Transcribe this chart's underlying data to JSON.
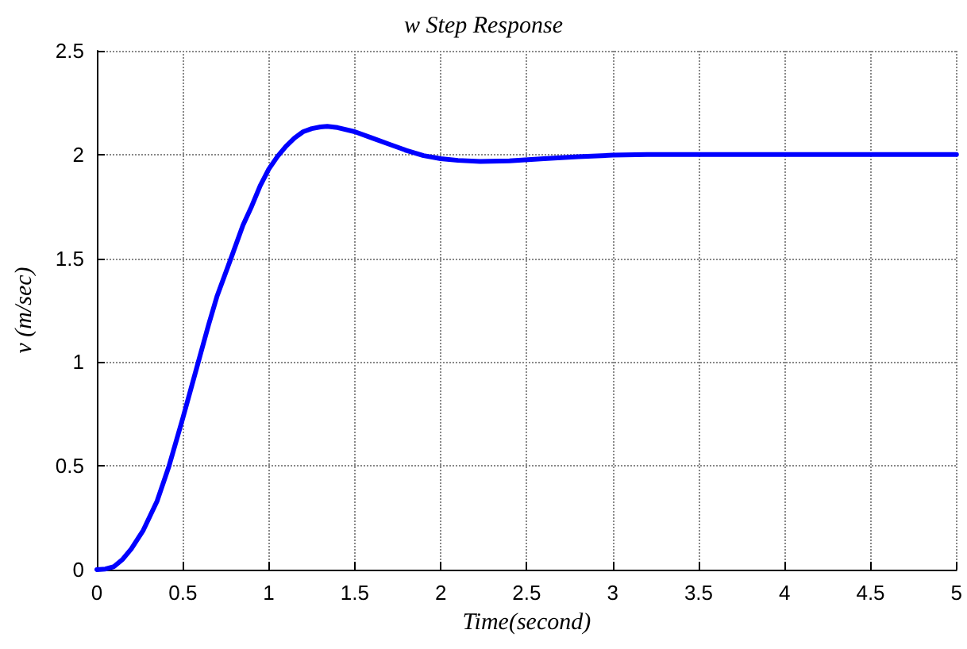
{
  "chart_data": {
    "type": "line",
    "title": "w Step Response",
    "xlabel": "Time(second)",
    "ylabel": "v (m/sec)",
    "x": [
      0,
      0.05,
      0.1,
      0.15,
      0.2,
      0.27,
      0.35,
      0.42,
      0.5,
      0.59,
      0.65,
      0.7,
      0.78,
      0.85,
      0.9,
      0.95,
      1.0,
      1.05,
      1.1,
      1.15,
      1.2,
      1.25,
      1.3,
      1.34,
      1.4,
      1.5,
      1.6,
      1.7,
      1.8,
      1.9,
      2.0,
      2.1,
      2.23,
      2.4,
      2.6,
      2.8,
      3.0,
      3.2,
      3.5,
      4.0,
      4.5,
      5.0
    ],
    "series": [
      {
        "color": "#0000ff",
        "values": [
          0,
          0.003,
          0.015,
          0.05,
          0.1,
          0.19,
          0.33,
          0.5,
          0.73,
          1.0,
          1.18,
          1.32,
          1.5,
          1.66,
          1.75,
          1.85,
          1.93,
          1.99,
          2.04,
          2.08,
          2.11,
          2.125,
          2.133,
          2.136,
          2.13,
          2.11,
          2.08,
          2.05,
          2.02,
          1.995,
          1.98,
          1.972,
          1.967,
          1.97,
          1.98,
          1.99,
          1.997,
          2.0,
          2.0,
          2.0,
          2.0,
          2.0
        ]
      }
    ],
    "xlim": [
      0,
      5
    ],
    "xticks": [
      0,
      0.5,
      1,
      1.5,
      2,
      2.5,
      3,
      3.5,
      4,
      4.5,
      5
    ],
    "ylim": [
      0,
      2.5
    ],
    "yticks": [
      0,
      0.5,
      1,
      1.5,
      2,
      2.5
    ],
    "grid": true,
    "marker": "none",
    "line_style": "solid"
  }
}
